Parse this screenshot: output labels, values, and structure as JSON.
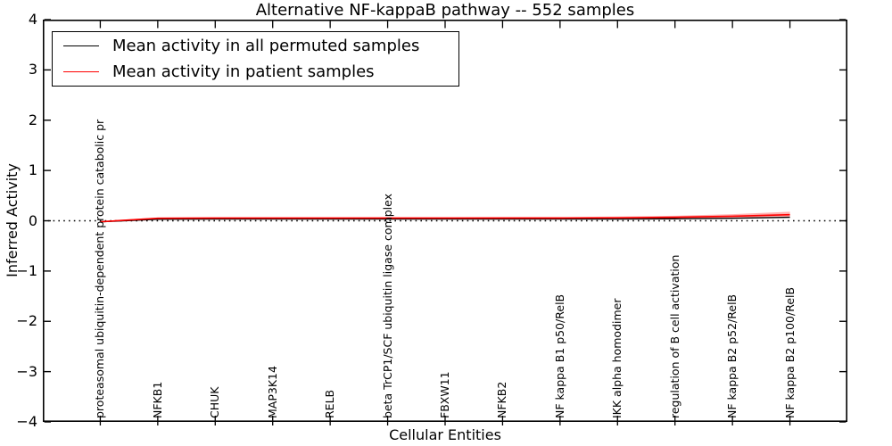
{
  "title": "Alternative NF-kappaB pathway -- 552 samples",
  "xlabel": "Cellular Entities",
  "ylabel": "Inferred Activity",
  "legend": {
    "items": [
      {
        "label": "Mean activity in all permuted samples",
        "color": "#000000"
      },
      {
        "label": "Mean activity in patient samples",
        "color": "#ff0000"
      }
    ]
  },
  "chart_data": {
    "type": "line",
    "title": "Alternative NF-kappaB pathway -- 552 samples",
    "xlabel": "Cellular Entities",
    "ylabel": "Inferred Activity",
    "xlim": [
      0,
      14
    ],
    "ylim": [
      -4,
      4
    ],
    "yticks": [
      -4,
      -3,
      -2,
      -1,
      0,
      1,
      2,
      3,
      4
    ],
    "ytick_labels": [
      "−4",
      "−3",
      "−2",
      "−1",
      "0",
      "1",
      "2",
      "3",
      "4"
    ],
    "grid": false,
    "legend_position": "upper left",
    "zero_line": {
      "y": 0,
      "style": "dotted",
      "color": "#000000"
    },
    "categories": [
      "proteasomal ubiquitin-dependent protein catabolic pr",
      "NFKB1",
      "CHUK",
      "MAP3K14",
      "RELB",
      "beta TrCP1/SCF ubiquitin ligase complex",
      "FBXW11",
      "NFKB2",
      "NF kappa B1 p50/RelB",
      "IKK alpha homodimer",
      "regulation of B cell activation",
      "NF kappa B2 p52/RelB",
      "NF kappa B2 p100/RelB"
    ],
    "series": [
      {
        "name": "Mean activity in all permuted samples",
        "color": "#000000",
        "values": [
          -0.02,
          0.03,
          0.035,
          0.035,
          0.035,
          0.035,
          0.035,
          0.035,
          0.035,
          0.035,
          0.04,
          0.05,
          0.07
        ]
      },
      {
        "name": "Mean activity in patient samples",
        "color": "#ff0000",
        "values": [
          -0.02,
          0.05,
          0.055,
          0.055,
          0.055,
          0.055,
          0.055,
          0.055,
          0.055,
          0.06,
          0.07,
          0.09,
          0.12
        ],
        "band_upper": [
          -0.005,
          0.065,
          0.07,
          0.07,
          0.07,
          0.07,
          0.07,
          0.075,
          0.075,
          0.085,
          0.1,
          0.13,
          0.18
        ],
        "band_lower": [
          -0.035,
          0.035,
          0.04,
          0.04,
          0.04,
          0.04,
          0.04,
          0.04,
          0.04,
          0.04,
          0.045,
          0.05,
          0.06
        ],
        "band_color": "#ff0000",
        "band_opacity": 0.3
      }
    ]
  }
}
